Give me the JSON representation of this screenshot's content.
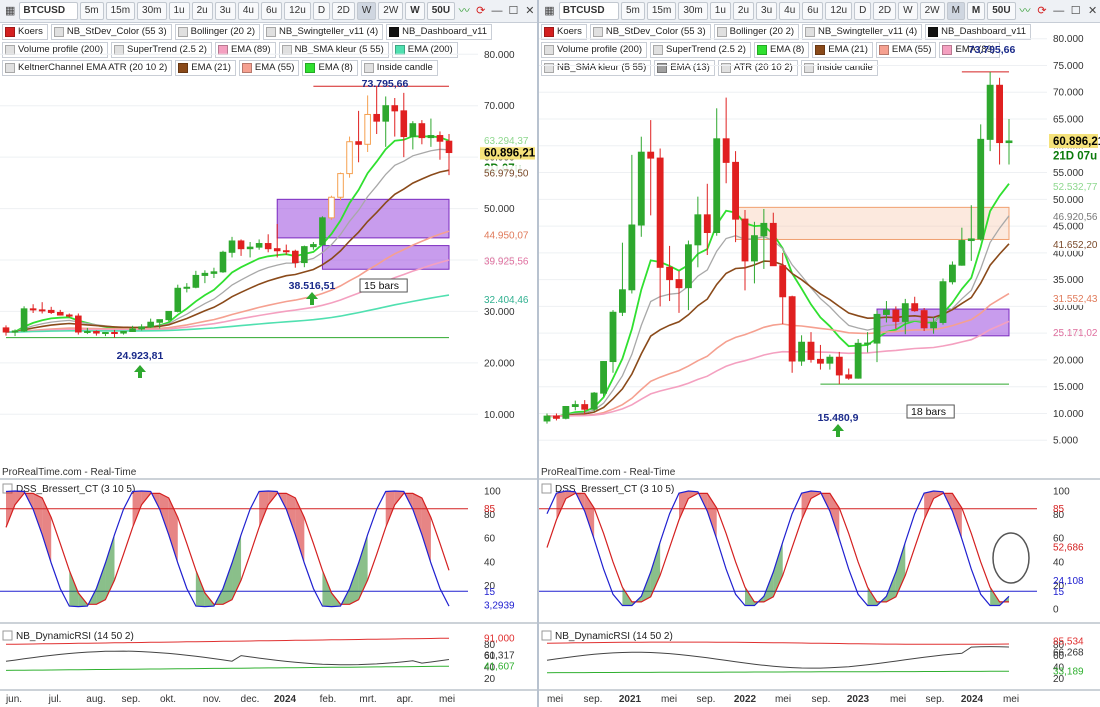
{
  "left": {
    "toolbar": {
      "symbol": "BTCUSD",
      "intervals": [
        "5m",
        "15m",
        "30m",
        "1u",
        "2u",
        "3u",
        "4u",
        "6u",
        "12u",
        "D",
        "2D",
        "W",
        "2W"
      ],
      "active_interval": "W",
      "selected_tf": "W",
      "bars": "50U"
    },
    "indicators": [
      {
        "label": "Koers",
        "color": "#d42020"
      },
      {
        "label": "NB_StDev_Color (55 3)",
        "color": "#e0e0e0"
      },
      {
        "label": "Bollinger (20 2)",
        "color": "#e0e0e0"
      },
      {
        "label": "NB_Swingteller_v11 (4)",
        "color": "#e0e0e0"
      },
      {
        "label": "NB_Dashboard_v11",
        "color": "#111111"
      },
      {
        "label": "Volume profile (200)",
        "color": "#e0e0e0"
      },
      {
        "label": "SuperTrend (2.5 2)",
        "color": "#e0e0e0"
      },
      {
        "label": "EMA (89)",
        "color": "#f4a0c0"
      },
      {
        "label": "NB_SMA kleur (5 55)",
        "color": "#e0e0e0"
      },
      {
        "label": "EMA (200)",
        "color": "#50e0b0"
      },
      {
        "label": "KeltnerChannel EMA ATR (20 10 2)",
        "color": "#e0e0e0"
      },
      {
        "label": "EMA (21)",
        "color": "#8a4a1a"
      },
      {
        "label": "EMA (55)",
        "color": "#f5a090"
      },
      {
        "label": "EMA (8)",
        "color": "#30e030"
      },
      {
        "label": "Inside candle",
        "color": "#e0e0e0"
      }
    ],
    "price_axis": [
      "80.000",
      "70.000",
      "60.000",
      "50.000",
      "40.000",
      "30.000",
      "20.000",
      "10.000"
    ],
    "price_tags": [
      {
        "text": "60.896,21",
        "value": 60896,
        "bg": "#f5e27a",
        "color": "#000"
      },
      {
        "text": "2D 07u",
        "value": 57900,
        "bg": "#ffffff",
        "color": "#0a7a0a"
      },
      {
        "text": "63.294,37",
        "value": 63294,
        "bg": "#ffffff",
        "color": "#8fd88f"
      },
      {
        "text": "56.979,50",
        "value": 56979,
        "bg": "#ffffff",
        "color": "#7a4a2a"
      },
      {
        "text": "44.950,07",
        "value": 44950,
        "bg": "#ffffff",
        "color": "#e07a5a"
      },
      {
        "text": "39.925,56",
        "value": 39925,
        "bg": "#ffffff",
        "color": "#e070a0"
      },
      {
        "text": "32.404,46",
        "value": 32404,
        "bg": "#ffffff",
        "color": "#30b090"
      }
    ],
    "annotations": {
      "high": "73.795,66",
      "low1": "38.516,51",
      "low2": "24.923,81",
      "bars_label": "15 bars"
    },
    "watermark": "ProRealTime.com - Real-Time",
    "dss": {
      "title": "DSS_Bressert_CT (3 10 5)",
      "axis": [
        "100",
        "80",
        "60",
        "40",
        "20"
      ],
      "tags": [
        {
          "text": "85",
          "color": "#d42020"
        },
        {
          "text": "15",
          "color": "#2020d0"
        },
        {
          "text": "3,2939",
          "color": "#2020d0"
        }
      ]
    },
    "rsi": {
      "title": "NB_DynamicRSI (14 50 2)",
      "axis": [
        "80",
        "60",
        "40",
        "20"
      ],
      "tags": [
        {
          "text": "91,000",
          "color": "#e03030"
        },
        {
          "text": "61,317",
          "color": "#333"
        },
        {
          "text": "41,607",
          "color": "#30b030"
        }
      ]
    },
    "x_axis": [
      "jun.",
      "jul.",
      "aug.",
      "sep.",
      "okt.",
      "nov.",
      "dec.",
      "2024",
      "feb.",
      "mrt.",
      "apr.",
      "mei"
    ]
  },
  "right": {
    "toolbar": {
      "symbol": "BTCUSD",
      "intervals": [
        "5m",
        "15m",
        "30m",
        "1u",
        "2u",
        "3u",
        "4u",
        "6u",
        "12u",
        "D",
        "2D",
        "W",
        "2W",
        "M"
      ],
      "active_interval": "M",
      "selected_tf": "M",
      "bars": "50U"
    },
    "indicators": [
      {
        "label": "Koers",
        "color": "#d42020"
      },
      {
        "label": "NB_StDev_Color (55 3)",
        "color": "#e0e0e0"
      },
      {
        "label": "Bollinger (20 2)",
        "color": "#e0e0e0"
      },
      {
        "label": "NB_Swingteller_v11 (4)",
        "color": "#e0e0e0"
      },
      {
        "label": "NB_Dashboard_v11",
        "color": "#111111"
      },
      {
        "label": "Volume profile (200)",
        "color": "#e0e0e0"
      },
      {
        "label": "SuperTrend (2.5 2)",
        "color": "#e0e0e0"
      },
      {
        "label": "EMA (8)",
        "color": "#30e030"
      },
      {
        "label": "EMA (21)",
        "color": "#8a4a1a"
      },
      {
        "label": "EMA (55)",
        "color": "#f5a090"
      },
      {
        "label": "EMA (89)",
        "color": "#f4a0c0"
      },
      {
        "label": "NB_SMA kleur (5 55)",
        "color": "#e0e0e0"
      },
      {
        "label": "EMA (13)",
        "color": "#a0a0a0"
      },
      {
        "label": "ATR (20 10 2)",
        "color": "#e0e0e0"
      },
      {
        "label": "Inside candle",
        "color": "#e0e0e0"
      }
    ],
    "price_axis": [
      "80.000",
      "75.000",
      "70.000",
      "65.000",
      "60.000",
      "55.000",
      "50.000",
      "45.000",
      "40.000",
      "35.000",
      "30.000",
      "25.000",
      "20.000",
      "15.000",
      "10.000",
      "5.000"
    ],
    "price_tags": [
      {
        "text": "60.896,21",
        "value": 60896,
        "bg": "#f5e27a",
        "color": "#000"
      },
      {
        "text": "21D 07u",
        "value": 58200,
        "bg": "#ffffff",
        "color": "#0a7a0a"
      },
      {
        "text": "52.532,77",
        "value": 52532,
        "bg": "#ffffff",
        "color": "#8fd88f"
      },
      {
        "text": "46.920,56",
        "value": 46920,
        "bg": "#ffffff",
        "color": "#777"
      },
      {
        "text": "41.652,20",
        "value": 41652,
        "bg": "#ffffff",
        "color": "#7a4a2a"
      },
      {
        "text": "31.552,43",
        "value": 31552,
        "bg": "#ffffff",
        "color": "#e07a5a"
      },
      {
        "text": "25.171,02",
        "value": 25171,
        "bg": "#ffffff",
        "color": "#e070a0"
      }
    ],
    "annotations": {
      "high": "73.795,66",
      "low": "15.480,9",
      "bars_label": "18 bars"
    },
    "watermark": "ProRealTime.com - Real-Time",
    "dss": {
      "title": "DSS_Bressert_CT (3 10 5)",
      "axis": [
        "100",
        "80",
        "60",
        "40",
        "20",
        "0"
      ],
      "tags": [
        {
          "text": "85",
          "color": "#d42020"
        },
        {
          "text": "52,686",
          "color": "#d42020"
        },
        {
          "text": "24,108",
          "color": "#2020d0"
        },
        {
          "text": "15",
          "color": "#2020d0"
        }
      ]
    },
    "rsi": {
      "title": "NB_DynamicRSI (14 50 2)",
      "axis": [
        "80",
        "60",
        "40",
        "20"
      ],
      "tags": [
        {
          "text": "85,534",
          "color": "#e03030"
        },
        {
          "text": "66,268",
          "color": "#333"
        },
        {
          "text": "33,189",
          "color": "#30b030"
        }
      ]
    },
    "x_axis": [
      "mei",
      "sep.",
      "2021",
      "mei",
      "sep.",
      "2022",
      "mei",
      "sep.",
      "2023",
      "mei",
      "sep.",
      "2024",
      "mei"
    ]
  },
  "chart_data": [
    {
      "type": "candlestick",
      "title": "BTCUSD W",
      "ylim": [
        5000,
        82000
      ],
      "candles": [
        [
          26800,
          27300,
          25300,
          26000
        ],
        [
          26000,
          26500,
          25200,
          26200
        ],
        [
          26200,
          31000,
          26000,
          30500
        ],
        [
          30500,
          31400,
          29700,
          30300
        ],
        [
          30300,
          31800,
          29600,
          30200
        ],
        [
          30200,
          30900,
          29500,
          29800
        ],
        [
          29800,
          30300,
          29200,
          29300
        ],
        [
          29300,
          29600,
          28800,
          29100
        ],
        [
          29100,
          29600,
          25500,
          26000
        ],
        [
          26000,
          26800,
          25600,
          26100
        ],
        [
          26100,
          26300,
          25300,
          25800
        ],
        [
          25800,
          26000,
          25200,
          25900
        ],
        [
          25900,
          26400,
          24900,
          25800
        ],
        [
          25800,
          26200,
          25500,
          26100
        ],
        [
          26100,
          27200,
          26000,
          26600
        ],
        [
          26600,
          27500,
          26300,
          27000
        ],
        [
          27000,
          28600,
          26800,
          27900
        ],
        [
          27900,
          28300,
          26700,
          28400
        ],
        [
          28400,
          30000,
          28100,
          30000
        ],
        [
          30000,
          35200,
          29800,
          34500
        ],
        [
          34500,
          35500,
          33700,
          34700
        ],
        [
          34700,
          37900,
          34500,
          37000
        ],
        [
          37000,
          38000,
          35500,
          37400
        ],
        [
          37400,
          38500,
          36500,
          37700
        ],
        [
          37700,
          41800,
          37500,
          41500
        ],
        [
          41500,
          44500,
          40500,
          43700
        ],
        [
          43700,
          44000,
          40800,
          42200
        ],
        [
          42200,
          43500,
          40500,
          42500
        ],
        [
          42500,
          44000,
          42000,
          43200
        ],
        [
          43200,
          45000,
          41500,
          42200
        ],
        [
          42200,
          47000,
          40500,
          41800
        ],
        [
          41800,
          43000,
          41000,
          41700
        ],
        [
          41700,
          42000,
          38500,
          39500
        ],
        [
          39500,
          42800,
          38600,
          42600
        ],
        [
          42600,
          43500,
          42000,
          43000
        ],
        [
          43000,
          48500,
          42800,
          48200
        ],
        [
          48200,
          52500,
          47800,
          52200
        ],
        [
          52200,
          57000,
          51600,
          56800
        ],
        [
          56800,
          64000,
          56000,
          63000
        ],
        [
          63000,
          69000,
          59000,
          62500
        ],
        [
          62500,
          72000,
          61000,
          68300
        ],
        [
          68300,
          73795,
          64500,
          67000
        ],
        [
          67000,
          71800,
          62000,
          70000
        ],
        [
          70000,
          71500,
          64000,
          69000
        ],
        [
          69000,
          72500,
          60000,
          64000
        ],
        [
          64000,
          67000,
          61500,
          66500
        ],
        [
          66500,
          67200,
          62500,
          63800
        ],
        [
          63800,
          67500,
          62000,
          64200
        ],
        [
          64200,
          65000,
          59500,
          63100
        ],
        [
          63100,
          64500,
          56500,
          60896
        ]
      ]
    },
    {
      "type": "candlestick",
      "title": "BTCUSD M",
      "ylim": [
        0,
        82000
      ],
      "candles": [
        [
          8600,
          10000,
          8100,
          9500
        ],
        [
          9500,
          10000,
          8700,
          9100
        ],
        [
          9100,
          11400,
          8900,
          11300
        ],
        [
          11300,
          12400,
          10600,
          11650
        ],
        [
          11650,
          12500,
          9900,
          10800
        ],
        [
          10800,
          14000,
          10400,
          13800
        ],
        [
          13800,
          19800,
          13200,
          19700
        ],
        [
          19700,
          29300,
          17600,
          28900
        ],
        [
          28900,
          41900,
          28200,
          33100
        ],
        [
          33100,
          58300,
          32400,
          45200
        ],
        [
          45200,
          61700,
          43000,
          58800
        ],
        [
          58800,
          64800,
          47000,
          57700
        ],
        [
          57700,
          59500,
          30000,
          37300
        ],
        [
          37300,
          41300,
          31000,
          35000
        ],
        [
          35000,
          36600,
          28800,
          33500
        ],
        [
          33500,
          42300,
          29300,
          41500
        ],
        [
          41500,
          50500,
          37300,
          47100
        ],
        [
          47100,
          52900,
          39600,
          43800
        ],
        [
          43800,
          67000,
          43200,
          61300
        ],
        [
          61300,
          69000,
          53000,
          56900
        ],
        [
          56900,
          59000,
          42000,
          46300
        ],
        [
          46300,
          48000,
          33000,
          38500
        ],
        [
          38500,
          45800,
          34300,
          43200
        ],
        [
          43200,
          48200,
          37000,
          45500
        ],
        [
          45500,
          47500,
          37700,
          37600
        ],
        [
          37600,
          40000,
          26700,
          31800
        ],
        [
          31800,
          32000,
          17600,
          19800
        ],
        [
          19800,
          24600,
          18900,
          23300
        ],
        [
          23300,
          25200,
          19500,
          20100
        ],
        [
          20100,
          22800,
          18200,
          19400
        ],
        [
          19400,
          21000,
          18200,
          20500
        ],
        [
          20500,
          21500,
          15480,
          17200
        ],
        [
          17200,
          18400,
          16300,
          16600
        ],
        [
          16600,
          23900,
          16500,
          23100
        ],
        [
          23100,
          25200,
          21400,
          23150
        ],
        [
          23150,
          29200,
          19600,
          28500
        ],
        [
          28500,
          31000,
          27000,
          29300
        ],
        [
          29300,
          30000,
          25800,
          27200
        ],
        [
          27200,
          31400,
          24800,
          30500
        ],
        [
          30500,
          31800,
          29000,
          29200
        ],
        [
          29200,
          29700,
          25400,
          26000
        ],
        [
          26000,
          28000,
          24900,
          27000
        ],
        [
          27000,
          35200,
          26600,
          34600
        ],
        [
          34600,
          38400,
          34100,
          37700
        ],
        [
          37700,
          44700,
          37600,
          42300
        ],
        [
          42300,
          48900,
          38500,
          42600
        ],
        [
          42600,
          64000,
          42300,
          61200
        ],
        [
          61200,
          73795,
          59000,
          71300
        ],
        [
          71300,
          72700,
          56500,
          60600
        ],
        [
          60600,
          65000,
          56500,
          60896
        ]
      ]
    }
  ]
}
